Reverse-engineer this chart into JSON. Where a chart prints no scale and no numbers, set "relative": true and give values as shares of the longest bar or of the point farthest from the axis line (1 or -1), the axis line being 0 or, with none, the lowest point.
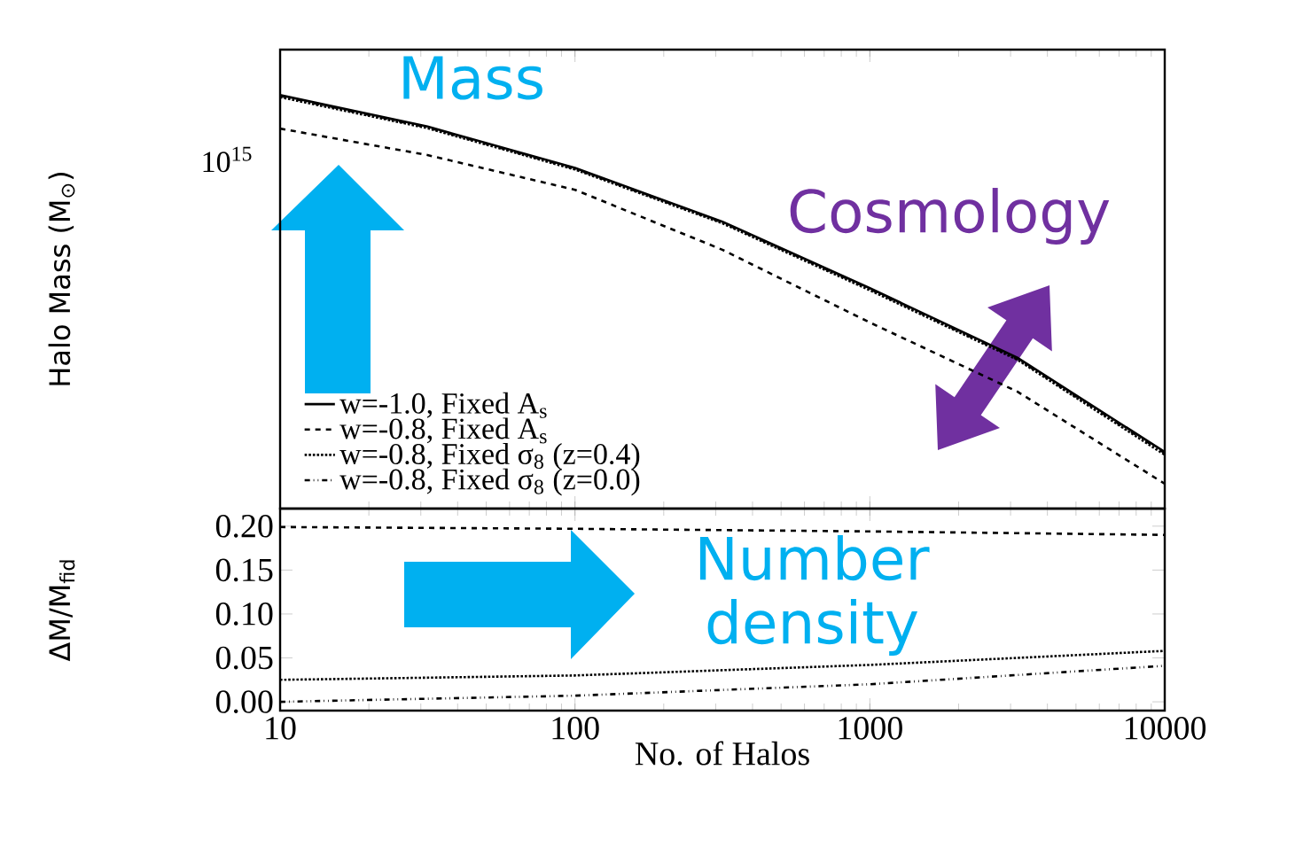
{
  "chart_data": [
    {
      "type": "line",
      "log": "x",
      "relative": true,
      "ylabel": "Halo Mass (M$_{⊙}$)",
      "x": [
        10,
        31.6,
        100,
        316,
        1000,
        3162,
        10000
      ],
      "xlim": [
        10,
        10000
      ],
      "xticks": [
        10,
        100,
        1000,
        10000
      ],
      "tick_labels": false,
      "legend": "bottom left",
      "marker": "none",
      "series": [
        {
          "name": "w=-1.0, Fixed A$_{s}$",
          "color": "#000000",
          "line_style": "solid",
          "values": [
            1.0,
            0.924,
            0.824,
            0.694,
            0.533,
            0.365,
            0.137
          ]
        },
        {
          "name": "w=-0.8, Fixed A$_{s}$",
          "color": "#000000",
          "line_style": "dashed",
          "values": [
            0.919,
            0.855,
            0.771,
            0.626,
            0.45,
            0.283,
            0.06
          ]
        },
        {
          "name": "w=-0.8, Fixed σ$_{8}$ (z=0.4)",
          "color": "#000000",
          "line_style": "dotted",
          "values": [
            0.995,
            0.92,
            0.82,
            0.69,
            0.528,
            0.36,
            0.13
          ]
        },
        {
          "name": "w=-0.8, Fixed σ$_{8}$ (z=0.0)",
          "color": "#000000",
          "line_style": "dashdotdotted",
          "values": [
            0.998,
            0.922,
            0.822,
            0.692,
            0.531,
            0.362,
            0.134
          ]
        }
      ],
      "annotations": [
        "10$^{15}$",
        "Mass",
        "Cosmology"
      ]
    },
    {
      "type": "line",
      "log": "x",
      "xlabel": "No. of Halos",
      "ylabel": "ΔM/M$_{fid}$",
      "x": [
        10,
        100,
        1000,
        10000
      ],
      "xlim": [
        10,
        10000
      ],
      "xticks": [
        10,
        100,
        1000,
        10000
      ],
      "ylim": [
        -0.01,
        0.22
      ],
      "yticks": [
        {
          "value": 0,
          "label": "0.00"
        },
        {
          "value": 0.05,
          "label": "0.05"
        },
        {
          "value": 0.1,
          "label": "0.10"
        },
        {
          "value": 0.15,
          "label": "0.15"
        },
        {
          "value": 0.2,
          "label": "0.20"
        }
      ],
      "legend": false,
      "marker": "none",
      "series": [
        {
          "color": "#000000",
          "line_style": "dashed",
          "values": [
            0.199,
            0.197,
            0.194,
            0.19
          ]
        },
        {
          "color": "#000000",
          "line_style": "dotted",
          "values": [
            0.025,
            0.03,
            0.042,
            0.058
          ]
        },
        {
          "color": "#000000",
          "line_style": "dashdotdotted",
          "values": [
            0.0,
            0.007,
            0.02,
            0.041
          ]
        }
      ],
      "annotations": [
        "Number density"
      ]
    }
  ]
}
